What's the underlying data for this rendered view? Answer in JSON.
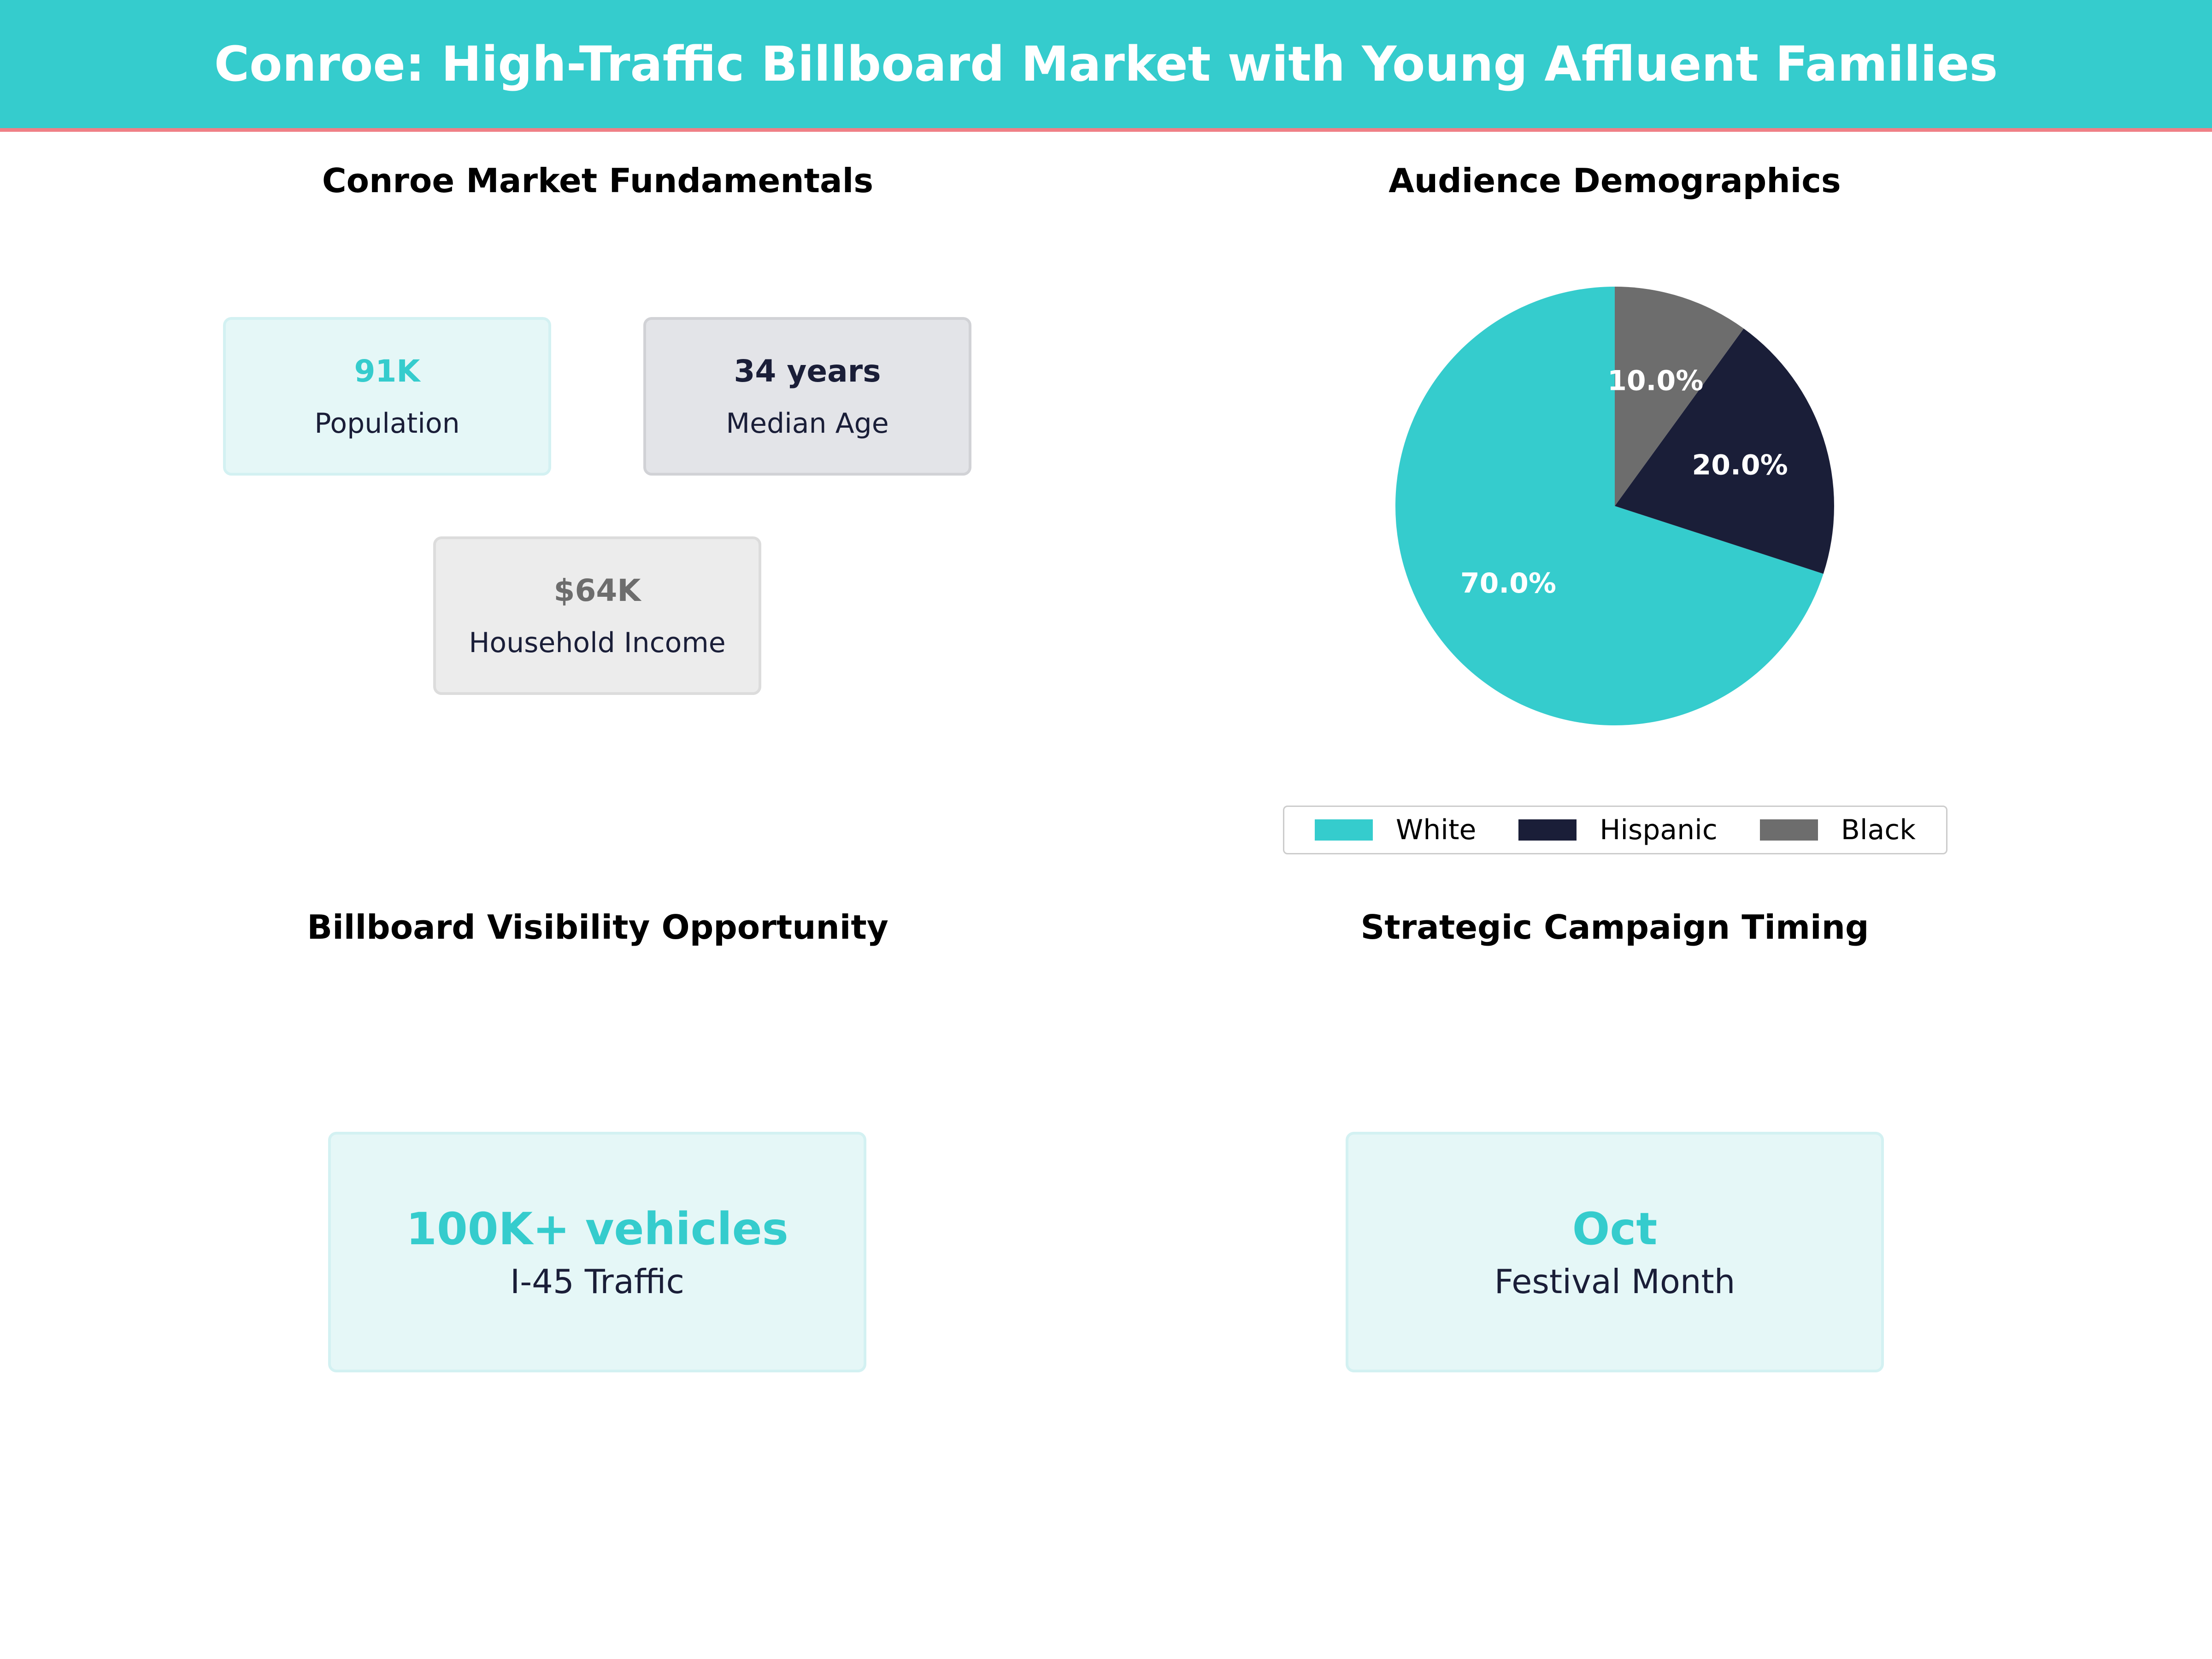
{
  "header": {
    "title": "Conroe: High-Traffic Billboard Market with Young Affluent Families",
    "background_color": "#35cccd",
    "accent_border_color": "#ef7f86"
  },
  "fundamentals": {
    "title": "Conroe Market Fundamentals",
    "cards": [
      {
        "value": "91K",
        "label": "Population",
        "value_color": "#35cccd",
        "bg": "#e5f7f7",
        "border": "#d3f1f2"
      },
      {
        "value": "34 years",
        "label": "Median Age",
        "value_color": "#1a1e38",
        "bg": "#e3e4e8",
        "border": "#d1d2d6"
      },
      {
        "value": "$64K",
        "label": "Household Income",
        "value_color": "#6d6d6d",
        "bg": "#ececec",
        "border": "#dcdcdc"
      }
    ]
  },
  "demographics": {
    "title": "Audience Demographics"
  },
  "visibility": {
    "title": "Billboard Visibility Opportunity",
    "value": "100K+ vehicles",
    "label": "I-45 Traffic"
  },
  "timing": {
    "title": "Strategic Campaign Timing",
    "value": "Oct",
    "label": "Festival Month"
  },
  "chart_data": {
    "type": "pie",
    "title": "Audience Demographics",
    "categories": [
      "White",
      "Hispanic",
      "Black"
    ],
    "values": [
      70.0,
      20.0,
      10.0
    ],
    "colors": [
      "#35cccd",
      "#1a1e38",
      "#6d6d6d"
    ],
    "data_labels": [
      "70.0%",
      "20.0%",
      "10.0%"
    ],
    "start_angle_deg": 90,
    "direction": "counterclockwise",
    "legend_position": "bottom"
  }
}
